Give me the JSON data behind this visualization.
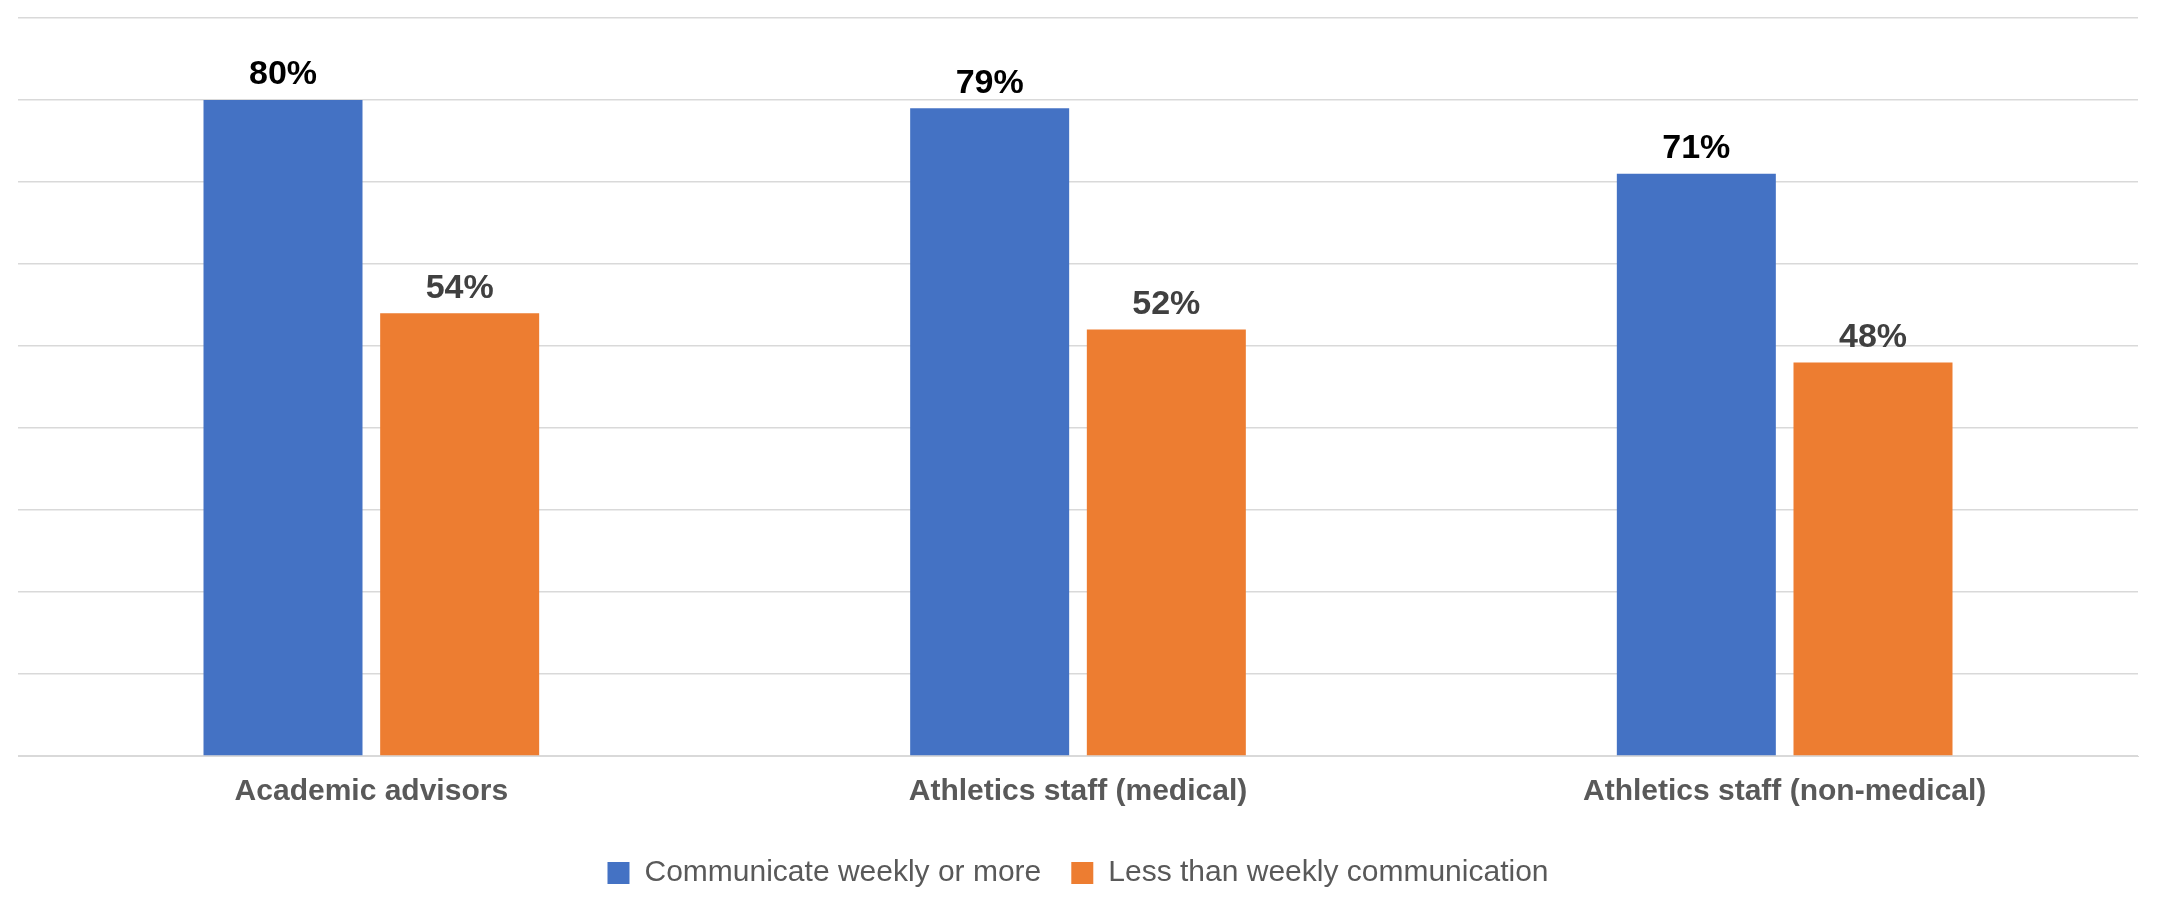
{
  "chart_data": {
    "type": "bar",
    "categories": [
      "Academic advisors",
      "Athletics staff (medical)",
      "Athletics staff (non-medical)"
    ],
    "series": [
      {
        "name": "Communicate weekly or more",
        "color": "#4472c4",
        "values": [
          80,
          79,
          71
        ],
        "value_labels": [
          "80%",
          "79%",
          "71%"
        ]
      },
      {
        "name": "Less than weekly communication",
        "color": "#ed7d31",
        "values": [
          54,
          52,
          48
        ],
        "value_labels": [
          "54%",
          "52%",
          "48%"
        ]
      }
    ],
    "ylim": [
      0,
      90
    ],
    "yticks": [
      {
        "value": 0,
        "label": null
      },
      {
        "value": 10,
        "label": null
      },
      {
        "value": 20,
        "label": null
      },
      {
        "value": 30,
        "label": null
      },
      {
        "value": 40,
        "label": null
      },
      {
        "value": 50,
        "label": null
      },
      {
        "value": 60,
        "label": null
      },
      {
        "value": 70,
        "label": null
      },
      {
        "value": 80,
        "label": null
      },
      {
        "value": 90,
        "label": null
      }
    ],
    "tick_labels": "x",
    "grid": "y",
    "legend": "bottom"
  }
}
